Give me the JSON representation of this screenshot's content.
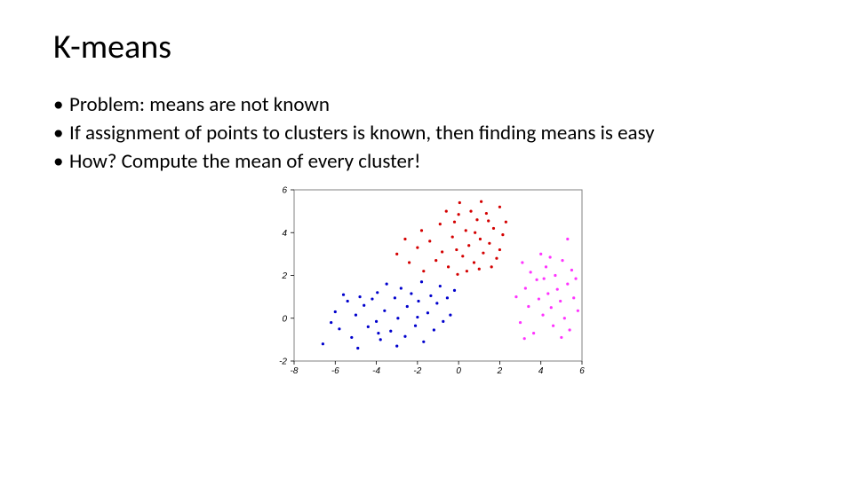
{
  "title": "K-means",
  "bullets": [
    "Problem: means are not known",
    "If assignment of points to clusters is known, then finding means is easy",
    "How? Compute the mean of every cluster!"
  ],
  "chart": {
    "type": "scatter",
    "background_color": "#ffffff",
    "frame_color": "#808080",
    "axis_color": "#000000",
    "tick_color": "#000000",
    "tick_fontsize": 10,
    "marker_size": 3.2,
    "xlim": [
      -8,
      6
    ],
    "ylim": [
      -2,
      6
    ],
    "xticks": [
      -8,
      -6,
      -4,
      -2,
      0,
      2,
      4,
      6
    ],
    "yticks": [
      -2,
      0,
      2,
      4,
      6
    ],
    "clusters": [
      {
        "name": "blue-cluster",
        "color": "#0000cd",
        "points": [
          [
            -6.6,
            -1.2
          ],
          [
            -6.0,
            0.3
          ],
          [
            -5.8,
            -0.5
          ],
          [
            -5.4,
            0.8
          ],
          [
            -5.2,
            -0.9
          ],
          [
            -5.0,
            0.15
          ],
          [
            -4.9,
            -1.4
          ],
          [
            -4.6,
            0.6
          ],
          [
            -4.4,
            -0.4
          ],
          [
            -4.2,
            0.9
          ],
          [
            -4.0,
            -0.15
          ],
          [
            -3.95,
            1.2
          ],
          [
            -3.8,
            -1.0
          ],
          [
            -3.6,
            0.35
          ],
          [
            -3.5,
            1.6
          ],
          [
            -3.3,
            -0.6
          ],
          [
            -3.1,
            0.95
          ],
          [
            -2.95,
            0.0
          ],
          [
            -2.8,
            1.4
          ],
          [
            -2.6,
            -0.85
          ],
          [
            -2.5,
            0.55
          ],
          [
            -2.3,
            1.15
          ],
          [
            -2.1,
            -0.35
          ],
          [
            -1.95,
            0.8
          ],
          [
            -1.8,
            1.7
          ],
          [
            -1.7,
            -1.1
          ],
          [
            -1.5,
            0.25
          ],
          [
            -1.35,
            1.05
          ],
          [
            -1.2,
            -0.55
          ],
          [
            -1.05,
            0.7
          ],
          [
            -0.9,
            1.5
          ],
          [
            -0.75,
            -0.15
          ],
          [
            -0.55,
            0.95
          ],
          [
            -0.4,
            0.15
          ],
          [
            -0.2,
            1.3
          ],
          [
            -5.6,
            1.1
          ],
          [
            -4.8,
            1.0
          ],
          [
            -3.9,
            -0.7
          ],
          [
            -3.0,
            -1.3
          ],
          [
            -2.0,
            0.05
          ],
          [
            -6.2,
            -0.2
          ]
        ]
      },
      {
        "name": "red-cluster",
        "color": "#d40000",
        "points": [
          [
            -2.4,
            2.6
          ],
          [
            -2.0,
            3.3
          ],
          [
            -1.7,
            2.2
          ],
          [
            -1.8,
            4.1
          ],
          [
            -1.4,
            3.6
          ],
          [
            -1.1,
            2.7
          ],
          [
            -0.9,
            4.4
          ],
          [
            -0.8,
            3.1
          ],
          [
            -0.6,
            5.0
          ],
          [
            -0.5,
            2.4
          ],
          [
            -0.3,
            3.8
          ],
          [
            -0.2,
            4.5
          ],
          [
            -0.1,
            3.2
          ],
          [
            0.05,
            5.4
          ],
          [
            0.2,
            2.9
          ],
          [
            0.35,
            4.1
          ],
          [
            0.5,
            3.4
          ],
          [
            0.6,
            5.0
          ],
          [
            0.75,
            2.6
          ],
          [
            0.9,
            4.6
          ],
          [
            1.05,
            3.7
          ],
          [
            1.2,
            3.05
          ],
          [
            1.35,
            4.9
          ],
          [
            1.5,
            3.5
          ],
          [
            1.7,
            4.2
          ],
          [
            1.85,
            2.8
          ],
          [
            2.0,
            5.2
          ],
          [
            2.15,
            3.9
          ],
          [
            -3.0,
            3.0
          ],
          [
            -2.6,
            3.7
          ],
          [
            0.0,
            4.85
          ],
          [
            0.4,
            2.2
          ],
          [
            1.1,
            5.45
          ],
          [
            1.6,
            2.4
          ],
          [
            2.3,
            4.5
          ],
          [
            -0.05,
            2.05
          ],
          [
            0.8,
            4.0
          ],
          [
            1.0,
            2.3
          ],
          [
            1.45,
            4.55
          ],
          [
            2.0,
            3.2
          ]
        ]
      },
      {
        "name": "magenta-cluster",
        "color": "#ff33ff",
        "points": [
          [
            3.0,
            -0.2
          ],
          [
            3.1,
            2.6
          ],
          [
            3.25,
            1.4
          ],
          [
            3.4,
            0.55
          ],
          [
            3.5,
            2.15
          ],
          [
            3.65,
            -0.7
          ],
          [
            3.8,
            1.8
          ],
          [
            3.9,
            0.9
          ],
          [
            4.0,
            3.0
          ],
          [
            4.1,
            0.15
          ],
          [
            4.25,
            2.4
          ],
          [
            4.35,
            1.15
          ],
          [
            4.5,
            0.5
          ],
          [
            4.6,
            -0.35
          ],
          [
            4.7,
            2.0
          ],
          [
            4.8,
            1.35
          ],
          [
            4.95,
            0.8
          ],
          [
            5.05,
            2.7
          ],
          [
            5.15,
            0.0
          ],
          [
            5.3,
            1.6
          ],
          [
            5.4,
            -0.55
          ],
          [
            5.5,
            2.25
          ],
          [
            5.6,
            0.95
          ],
          [
            5.7,
            1.85
          ],
          [
            5.8,
            0.35
          ],
          [
            5.3,
            3.7
          ],
          [
            2.8,
            1.0
          ],
          [
            3.2,
            -0.95
          ],
          [
            4.15,
            1.85
          ],
          [
            4.45,
            2.85
          ],
          [
            5.0,
            -0.9
          ]
        ]
      }
    ]
  }
}
